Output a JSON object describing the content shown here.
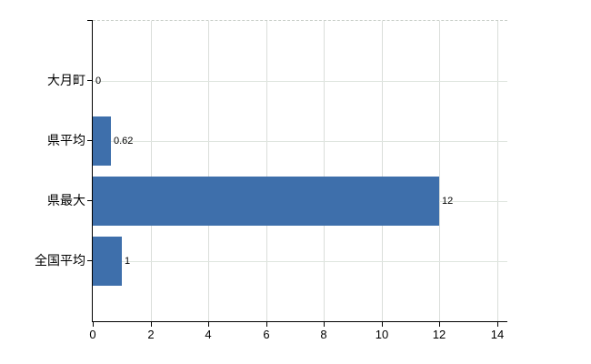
{
  "chart_data": {
    "type": "bar",
    "orientation": "horizontal",
    "title": "",
    "xlabel": "",
    "ylabel": "",
    "categories": [
      "大月町",
      "県平均",
      "県最大",
      "全国平均"
    ],
    "values": [
      0,
      0.62,
      12,
      1
    ],
    "value_labels": [
      "0",
      "0.62",
      "12",
      "1"
    ],
    "x_ticks": [
      0,
      2,
      4,
      6,
      8,
      10,
      12,
      14
    ],
    "xlim": [
      0,
      14.35
    ],
    "grid": "on",
    "legend": "none",
    "bar_color": "#3e6fab",
    "axis_color": "#000000",
    "vertical_gridline_color": "#dadeda",
    "horizontal_gridline_color": "#dfe5df",
    "top_border_style": "dashed",
    "background_color": "#ffffff"
  }
}
